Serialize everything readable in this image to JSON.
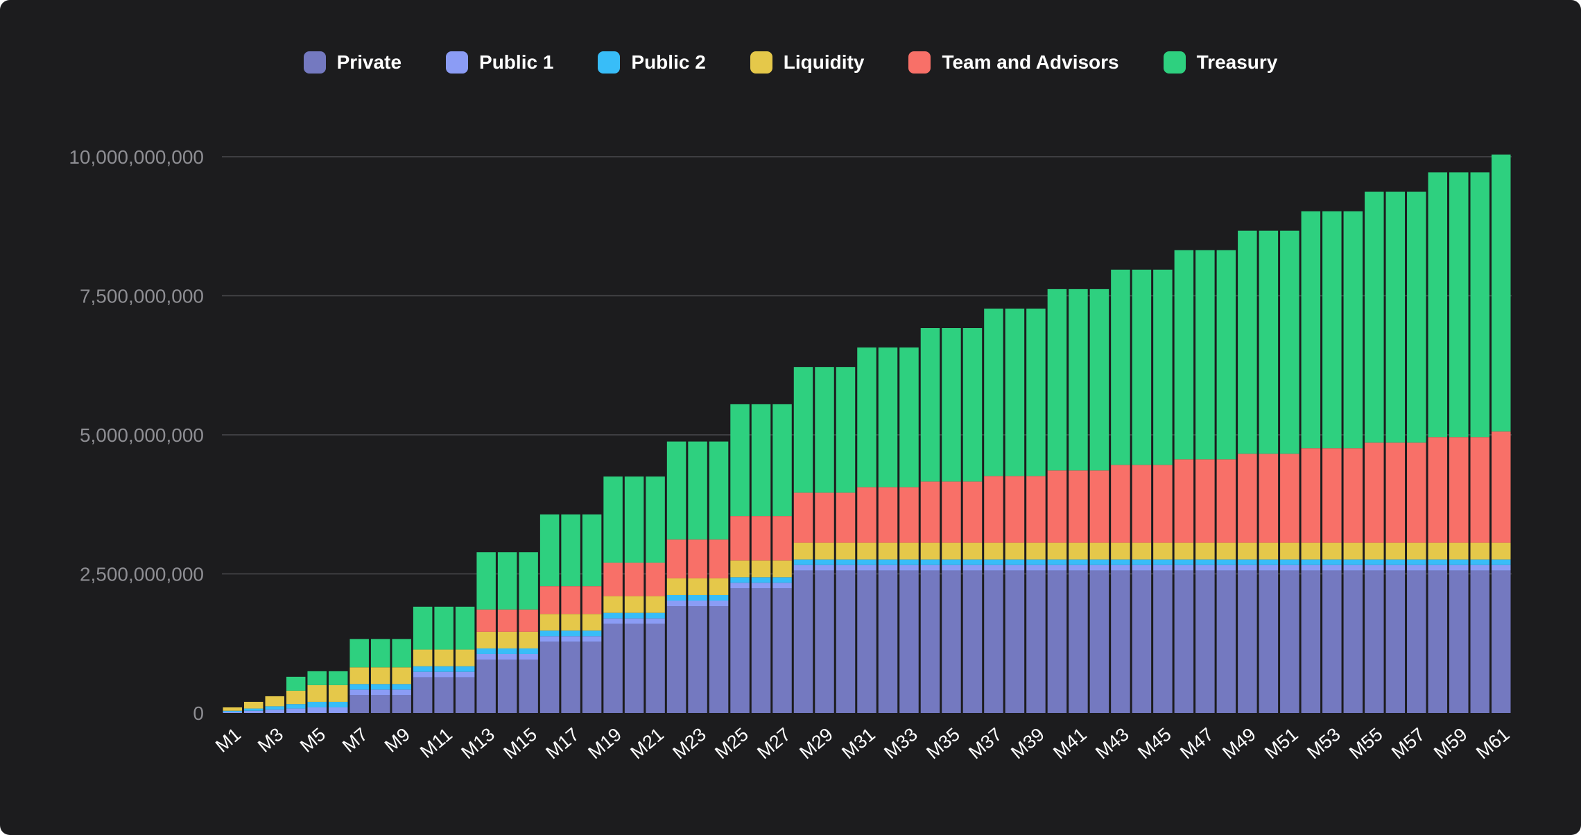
{
  "chart_data": {
    "type": "bar",
    "stacked": true,
    "title": "",
    "xlabel": "",
    "ylabel": "",
    "ylim": [
      0,
      10000000000
    ],
    "yticks": [
      0,
      2500000000,
      5000000000,
      7500000000,
      10000000000
    ],
    "ytick_labels": [
      "0",
      "2,500,000,000",
      "5,000,000,000",
      "7,500,000,000",
      "10,000,000,000"
    ],
    "grid": true,
    "legend_position": "top-center",
    "categories": [
      "M1",
      "M2",
      "M3",
      "M4",
      "M5",
      "M6",
      "M7",
      "M8",
      "M9",
      "M10",
      "M11",
      "M12",
      "M13",
      "M14",
      "M15",
      "M16",
      "M17",
      "M18",
      "M19",
      "M20",
      "M21",
      "M22",
      "M23",
      "M24",
      "M25",
      "M26",
      "M27",
      "M28",
      "M29",
      "M30",
      "M31",
      "M32",
      "M33",
      "M34",
      "M35",
      "M36",
      "M37",
      "M38",
      "M39",
      "M40",
      "M41",
      "M42",
      "M43",
      "M44",
      "M45",
      "M46",
      "M47",
      "M48",
      "M49",
      "M50",
      "M51",
      "M52",
      "M53",
      "M54",
      "M55",
      "M56",
      "M57",
      "M58",
      "M59",
      "M60",
      "M61"
    ],
    "tick_labels": [
      "M1",
      "M3",
      "M5",
      "M7",
      "M9",
      "M11",
      "M13",
      "M15",
      "M17",
      "M19",
      "M21",
      "M23",
      "M25",
      "M27",
      "M29",
      "M31",
      "M33",
      "M35",
      "M37",
      "M39",
      "M41",
      "M43",
      "M45",
      "M47",
      "M49",
      "M51",
      "M53",
      "M55",
      "M57",
      "M59",
      "M61"
    ],
    "series": [
      {
        "name": "Private",
        "color": "#7479c0",
        "values": [
          0,
          0,
          0,
          0,
          0,
          0,
          320000000,
          320000000,
          320000000,
          640000000,
          640000000,
          640000000,
          960000000,
          960000000,
          960000000,
          1280000000,
          1280000000,
          1280000000,
          1600000000,
          1600000000,
          1600000000,
          1920000000,
          1920000000,
          1920000000,
          2240000000,
          2240000000,
          2240000000,
          2560000000,
          2560000000,
          2560000000,
          2560000000,
          2560000000,
          2560000000,
          2560000000,
          2560000000,
          2560000000,
          2560000000,
          2560000000,
          2560000000,
          2560000000,
          2560000000,
          2560000000,
          2560000000,
          2560000000,
          2560000000,
          2560000000,
          2560000000,
          2560000000,
          2560000000,
          2560000000,
          2560000000,
          2560000000,
          2560000000,
          2560000000,
          2560000000,
          2560000000,
          2560000000,
          2560000000,
          2560000000,
          2560000000,
          2560000000
        ]
      },
      {
        "name": "Public 1",
        "color": "#8b9cf5",
        "values": [
          20000000,
          40000000,
          60000000,
          80000000,
          100000000,
          100000000,
          100000000,
          100000000,
          100000000,
          100000000,
          100000000,
          100000000,
          100000000,
          100000000,
          100000000,
          100000000,
          100000000,
          100000000,
          100000000,
          100000000,
          100000000,
          100000000,
          100000000,
          100000000,
          100000000,
          100000000,
          100000000,
          100000000,
          100000000,
          100000000,
          100000000,
          100000000,
          100000000,
          100000000,
          100000000,
          100000000,
          100000000,
          100000000,
          100000000,
          100000000,
          100000000,
          100000000,
          100000000,
          100000000,
          100000000,
          100000000,
          100000000,
          100000000,
          100000000,
          100000000,
          100000000,
          100000000,
          100000000,
          100000000,
          100000000,
          100000000,
          100000000,
          100000000,
          100000000,
          100000000,
          100000000
        ]
      },
      {
        "name": "Public 2",
        "color": "#38bdf8",
        "values": [
          20000000,
          40000000,
          60000000,
          80000000,
          100000000,
          100000000,
          100000000,
          100000000,
          100000000,
          100000000,
          100000000,
          100000000,
          100000000,
          100000000,
          100000000,
          100000000,
          100000000,
          100000000,
          100000000,
          100000000,
          100000000,
          100000000,
          100000000,
          100000000,
          100000000,
          100000000,
          100000000,
          100000000,
          100000000,
          100000000,
          100000000,
          100000000,
          100000000,
          100000000,
          100000000,
          100000000,
          100000000,
          100000000,
          100000000,
          100000000,
          100000000,
          100000000,
          100000000,
          100000000,
          100000000,
          100000000,
          100000000,
          100000000,
          100000000,
          100000000,
          100000000,
          100000000,
          100000000,
          100000000,
          100000000,
          100000000,
          100000000,
          100000000,
          100000000,
          100000000,
          100000000
        ]
      },
      {
        "name": "Liquidity",
        "color": "#e5c84a",
        "values": [
          60000000,
          120000000,
          180000000,
          240000000,
          300000000,
          300000000,
          300000000,
          300000000,
          300000000,
          300000000,
          300000000,
          300000000,
          300000000,
          300000000,
          300000000,
          300000000,
          300000000,
          300000000,
          300000000,
          300000000,
          300000000,
          300000000,
          300000000,
          300000000,
          300000000,
          300000000,
          300000000,
          300000000,
          300000000,
          300000000,
          300000000,
          300000000,
          300000000,
          300000000,
          300000000,
          300000000,
          300000000,
          300000000,
          300000000,
          300000000,
          300000000,
          300000000,
          300000000,
          300000000,
          300000000,
          300000000,
          300000000,
          300000000,
          300000000,
          300000000,
          300000000,
          300000000,
          300000000,
          300000000,
          300000000,
          300000000,
          300000000,
          300000000,
          300000000,
          300000000,
          300000000
        ]
      },
      {
        "name": "Team and Advisors",
        "color": "#f87068",
        "values": [
          0,
          0,
          0,
          0,
          0,
          0,
          0,
          0,
          0,
          0,
          0,
          0,
          400000000,
          400000000,
          400000000,
          500000000,
          500000000,
          500000000,
          600000000,
          600000000,
          600000000,
          700000000,
          700000000,
          700000000,
          800000000,
          800000000,
          800000000,
          900000000,
          900000000,
          900000000,
          1000000000,
          1000000000,
          1000000000,
          1100000000,
          1100000000,
          1100000000,
          1200000000,
          1200000000,
          1200000000,
          1300000000,
          1300000000,
          1300000000,
          1400000000,
          1400000000,
          1400000000,
          1500000000,
          1500000000,
          1500000000,
          1600000000,
          1600000000,
          1600000000,
          1700000000,
          1700000000,
          1700000000,
          1800000000,
          1800000000,
          1800000000,
          1900000000,
          1900000000,
          1900000000,
          2000000000
        ]
      },
      {
        "name": "Treasury",
        "color": "#2ed07f",
        "values": [
          0,
          0,
          0,
          250000000,
          250000000,
          250000000,
          510000000,
          510000000,
          510000000,
          770000000,
          770000000,
          770000000,
          1030000000,
          1030000000,
          1030000000,
          1290000000,
          1290000000,
          1290000000,
          1550000000,
          1550000000,
          1550000000,
          1760000000,
          1760000000,
          1760000000,
          2010000000,
          2010000000,
          2010000000,
          2260000000,
          2260000000,
          2260000000,
          2510000000,
          2510000000,
          2510000000,
          2760000000,
          2760000000,
          2760000000,
          3010000000,
          3010000000,
          3010000000,
          3260000000,
          3260000000,
          3260000000,
          3510000000,
          3510000000,
          3510000000,
          3760000000,
          3760000000,
          3760000000,
          4010000000,
          4010000000,
          4010000000,
          4260000000,
          4260000000,
          4260000000,
          4510000000,
          4510000000,
          4510000000,
          4760000000,
          4760000000,
          4760000000,
          4980000000
        ]
      }
    ]
  }
}
